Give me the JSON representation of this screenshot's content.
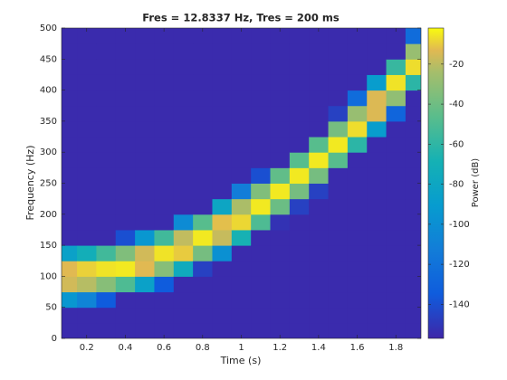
{
  "chart_data": {
    "type": "heatmap",
    "title": "Fres = 12.8337 Hz, Tres = 200 ms",
    "x_label": "Time (s)",
    "y_label": "Frequency (Hz)",
    "colorbar_label": "Power (dB)",
    "x": [
      0.1,
      0.2,
      0.3,
      0.4,
      0.5,
      0.6,
      0.7,
      0.8,
      0.9,
      1.0,
      1.1,
      1.2,
      1.3,
      1.4,
      1.5,
      1.6,
      1.7,
      1.8,
      1.9
    ],
    "y": [
      12.5,
      37.5,
      62.5,
      87.5,
      112.5,
      137.5,
      162.5,
      187.5,
      212.5,
      237.5,
      262.5,
      287.5,
      312.5,
      337.5,
      362.5,
      387.5,
      412.5,
      437.5,
      462.5,
      487.5
    ],
    "z": [
      [
        -155,
        -155,
        -94,
        -16,
        -13,
        -85,
        -155,
        -155,
        -155,
        -155,
        -155,
        -155,
        -155,
        -155,
        -155,
        -155,
        -155,
        -155,
        -155,
        -155
      ],
      [
        -155,
        -155,
        -108,
        -21,
        -9,
        -72,
        -155,
        -155,
        -155,
        -155,
        -155,
        -155,
        -155,
        -155,
        -155,
        -155,
        -155,
        -155,
        -155,
        -155
      ],
      [
        -155,
        -155,
        -135,
        -33,
        -6,
        -54,
        -155,
        -155,
        -155,
        -155,
        -155,
        -155,
        -155,
        -155,
        -155,
        -155,
        -155,
        -155,
        -155,
        -155
      ],
      [
        -155,
        -155,
        -155,
        -50,
        -5,
        -35,
        -140,
        -155,
        -155,
        -155,
        -155,
        -155,
        -155,
        -155,
        -155,
        -155,
        -155,
        -155,
        -155,
        -155
      ],
      [
        -155,
        -155,
        -155,
        -85,
        -13,
        -16,
        -94,
        -155,
        -155,
        -155,
        -155,
        -155,
        -155,
        -155,
        -155,
        -155,
        -155,
        -155,
        -155,
        -155
      ],
      [
        -155,
        -155,
        -155,
        -135,
        -33,
        -6,
        -54,
        -155,
        -155,
        -155,
        -155,
        -155,
        -155,
        -155,
        -155,
        -155,
        -155,
        -155,
        -155,
        -155
      ],
      [
        -155,
        -155,
        -155,
        -155,
        -76,
        -10,
        -19,
        -103,
        -155,
        -155,
        -155,
        -155,
        -155,
        -155,
        -155,
        -155,
        -155,
        -155,
        -155,
        -155
      ],
      [
        -155,
        -155,
        -155,
        -155,
        -146,
        -38,
        -5,
        -47,
        -155,
        -155,
        -155,
        -155,
        -155,
        -155,
        -155,
        -155,
        -155,
        -155,
        -155,
        -155
      ],
      [
        -155,
        -155,
        -155,
        -155,
        -155,
        -99,
        -18,
        -12,
        -81,
        -155,
        -155,
        -155,
        -155,
        -155,
        -155,
        -155,
        -155,
        -155,
        -155,
        -155
      ],
      [
        -155,
        -155,
        -155,
        -155,
        -155,
        -155,
        -68,
        -8,
        -23,
        -113,
        -155,
        -155,
        -155,
        -155,
        -155,
        -155,
        -155,
        -155,
        -155,
        -155
      ],
      [
        -155,
        -155,
        -155,
        -155,
        -155,
        -155,
        -155,
        -50,
        -5,
        -35,
        -140,
        -155,
        -155,
        -155,
        -155,
        -155,
        -155,
        -155,
        -155,
        -155
      ],
      [
        -155,
        -155,
        -155,
        -155,
        -155,
        -155,
        -155,
        -152,
        -41,
        -5,
        -44,
        -155,
        -155,
        -155,
        -155,
        -155,
        -155,
        -155,
        -155,
        -155
      ],
      [
        -155,
        -155,
        -155,
        -155,
        -155,
        -155,
        -155,
        -155,
        -146,
        -38,
        -5,
        -47,
        -155,
        -155,
        -155,
        -155,
        -155,
        -155,
        -155,
        -155
      ],
      [
        -155,
        -155,
        -155,
        -155,
        -155,
        -155,
        -155,
        -155,
        -155,
        -146,
        -38,
        -5,
        -47,
        -155,
        -155,
        -155,
        -155,
        -155,
        -155,
        -155
      ],
      [
        -155,
        -155,
        -155,
        -155,
        -155,
        -155,
        -155,
        -155,
        -155,
        -155,
        -155,
        -47,
        -5,
        -38,
        -146,
        -155,
        -155,
        -155,
        -155,
        -155
      ],
      [
        -155,
        -155,
        -155,
        -155,
        -155,
        -155,
        -155,
        -155,
        -155,
        -155,
        -155,
        -155,
        -61,
        -7,
        -28,
        -124,
        -155,
        -155,
        -155,
        -155
      ],
      [
        -155,
        -155,
        -155,
        -155,
        -155,
        -155,
        -155,
        -155,
        -155,
        -155,
        -155,
        -155,
        -155,
        -89,
        -14,
        -14,
        -89,
        -155,
        -155,
        -155
      ],
      [
        -155,
        -155,
        -155,
        -155,
        -155,
        -155,
        -155,
        -155,
        -155,
        -155,
        -155,
        -155,
        -155,
        -155,
        -129,
        -30,
        -6,
        -57,
        -155,
        -155
      ],
      [
        -155,
        -155,
        -155,
        -155,
        -155,
        -155,
        -155,
        -155,
        -155,
        -155,
        -155,
        -155,
        -155,
        -155,
        -155,
        -155,
        -61,
        -7,
        -28,
        -124
      ]
    ],
    "xlim": [
      0.07,
      1.93
    ],
    "xticks": [
      0.2,
      0.4,
      0.6,
      0.8,
      1,
      1.2,
      1.4,
      1.6,
      1.8
    ],
    "ylim": [
      0,
      500
    ],
    "yticks": [
      0,
      50,
      100,
      150,
      200,
      250,
      300,
      350,
      400,
      450,
      500
    ],
    "clim": [
      -157,
      -2
    ],
    "cticks": [
      -140,
      -120,
      -100,
      -80,
      -60,
      -40,
      -20
    ],
    "colormap": "parula"
  }
}
